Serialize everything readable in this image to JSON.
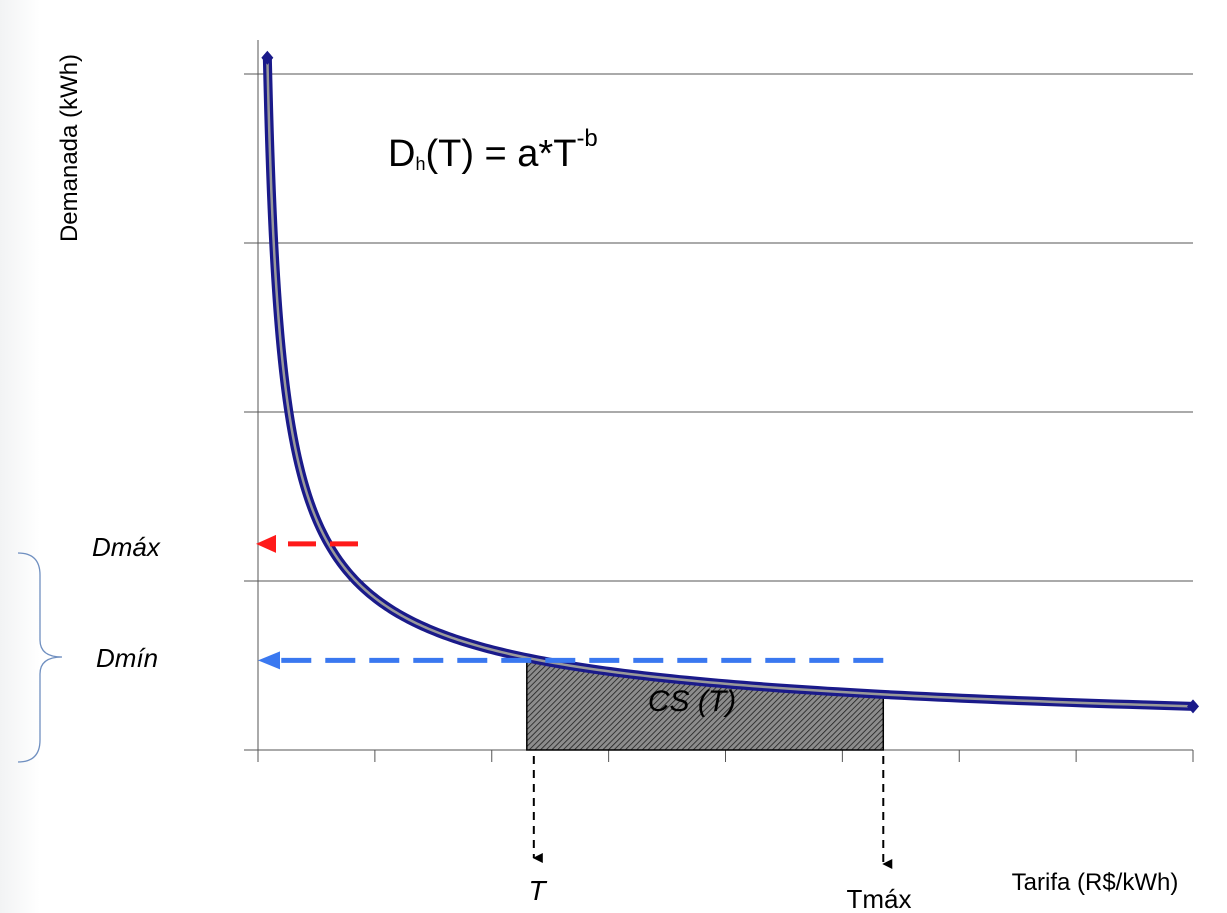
{
  "chart_data": {
    "type": "line",
    "equation": {
      "base": "D",
      "sub": "h",
      "mid": "(T) = a*T",
      "sup": "-b"
    },
    "ylabel": "Demanada (kWh)",
    "xlabel": "Tarifa (R$/kWh)",
    "xlim": [
      0,
      8
    ],
    "ylim": [
      0,
      4
    ],
    "x_tick_count": 9,
    "y_gridlines": [
      1,
      2,
      3,
      4
    ],
    "grid": true,
    "series": [
      {
        "function": "power",
        "a": 0.9,
        "b": 0.6,
        "x_range": [
          0.08,
          8
        ],
        "color": "#1a1a8a"
      }
    ],
    "annotations": {
      "T_value": 2.3,
      "Tmax_value": 5.35,
      "Dmax_value": 1.22,
      "Dmin_value": 0.53,
      "dmax_label": "Dmáx",
      "dmin_label": "Dmín",
      "t_label": "T",
      "tmax_label": "Tmáx",
      "cs_label": "CS (T)"
    },
    "colors": {
      "curve": "#1a1a8a",
      "curve_core": "#9a9a9a",
      "dmax_arrow": "#ff1a1a",
      "dmin_arrow": "#3a78f0",
      "brace": "#6f8fc0"
    }
  }
}
